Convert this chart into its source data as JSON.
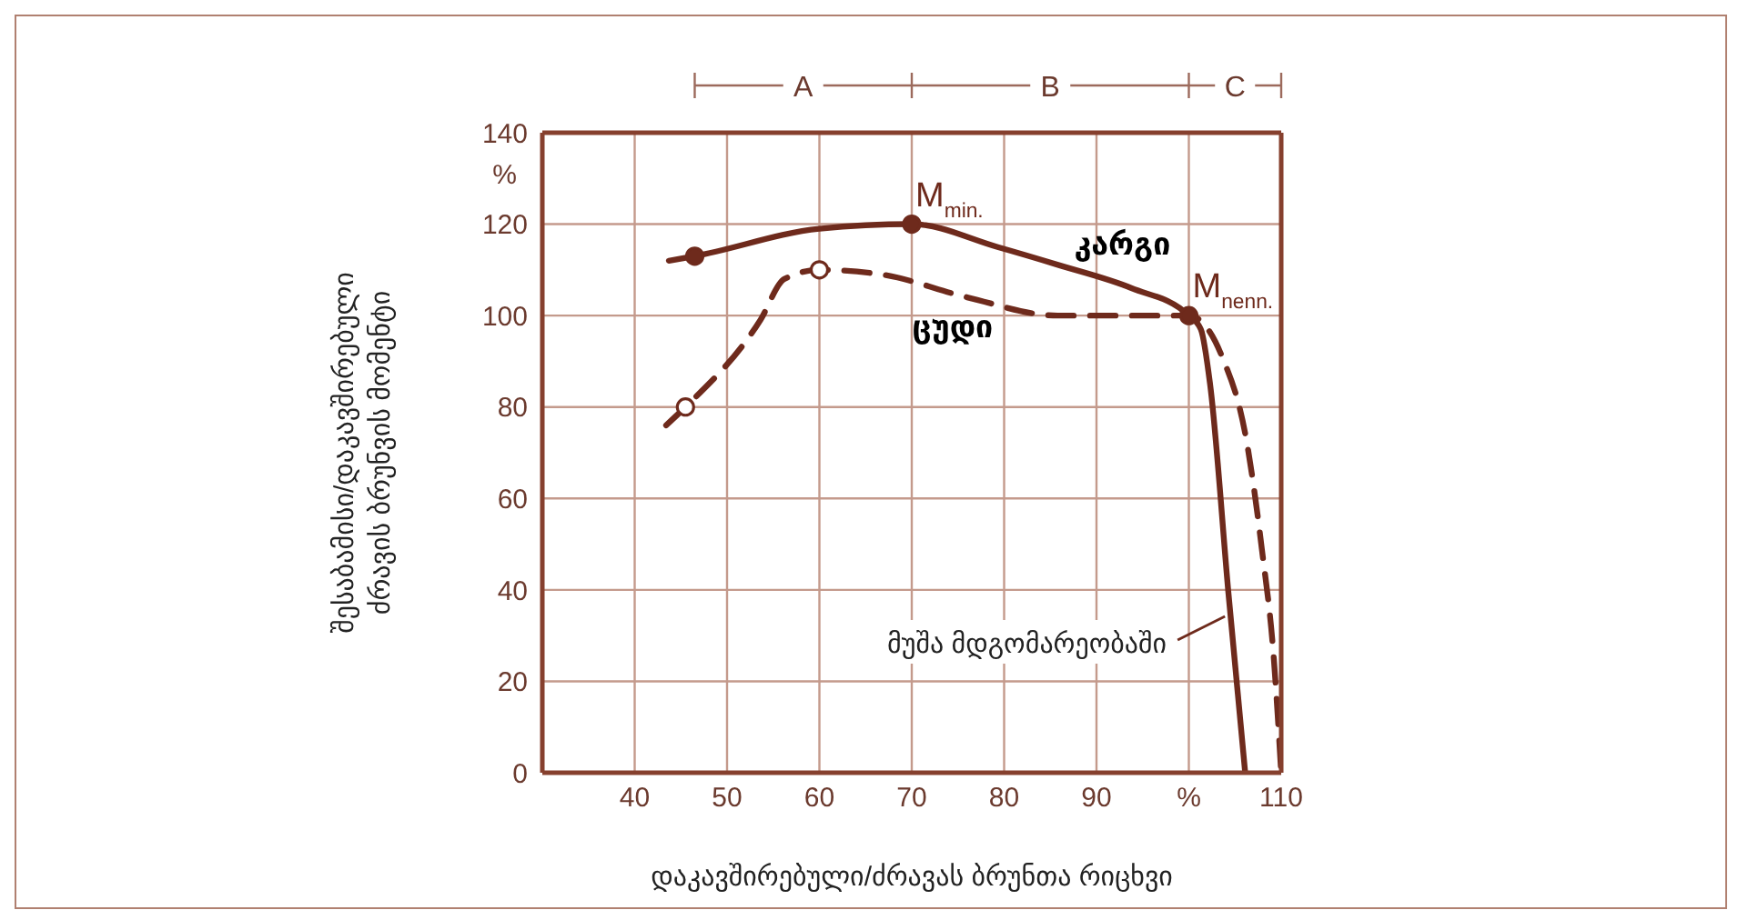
{
  "chart_data": {
    "type": "line",
    "xlabel": "დაკავშირებული/ძრავას ბრუნთა რიცხვი",
    "ylabel": "შესაბამისი/დაკავშირებული ძრავის ბრუნვის მომენტი",
    "xlim": [
      30,
      110
    ],
    "ylim": [
      0,
      140
    ],
    "xticks": [
      40,
      50,
      60,
      70,
      80,
      90,
      {
        "value": 100,
        "label": "%"
      },
      110
    ],
    "yticks": [
      0,
      20,
      40,
      60,
      80,
      100,
      120,
      140
    ],
    "grid": true,
    "marker": "none",
    "series": [
      {
        "name": "კარგი",
        "color": "#6e2a1c",
        "line_style": "solid",
        "x": [
          43.7,
          46.5,
          60,
          70,
          79.3,
          86,
          93.8,
          100,
          101.3,
          102.3,
          104.3,
          106.1
        ],
        "values": [
          112,
          113,
          119,
          120,
          115,
          111,
          106,
          100,
          97,
          85,
          39,
          0
        ]
      },
      {
        "name": "ცუდი",
        "color": "#6e2a1c",
        "line_style": "dashed",
        "x": [
          43.4,
          45.5,
          53.6,
          56.2,
          60,
          66.7,
          76,
          85.8,
          94.4,
          100,
          103.6,
          106.3,
          107.9,
          109.2,
          110
        ],
        "values": [
          76,
          80,
          99,
          108,
          110,
          109,
          104,
          100,
          100,
          100,
          91,
          72,
          49,
          25,
          0
        ]
      },
      {
        "type": "scatter",
        "marker": "circle",
        "color": "#6e2a1c",
        "x": [
          46.5,
          70,
          100
        ],
        "values": [
          113,
          120,
          100
        ]
      },
      {
        "type": "scatter",
        "marker": "circle",
        "color": "#ffffff",
        "x": [
          45.5,
          60
        ],
        "values": [
          80,
          110
        ]
      }
    ],
    "annotations": [
      "%",
      "A",
      "B",
      "C",
      {
        "text": "M$_{min.}$",
        "x": 70,
        "y": 120
      },
      {
        "text": "M$_{nenn.}$",
        "x": 100,
        "y": 100
      },
      {
        "text": "მუშა მდგომარეობაში",
        "x": 104.3,
        "y": 35
      }
    ]
  }
}
